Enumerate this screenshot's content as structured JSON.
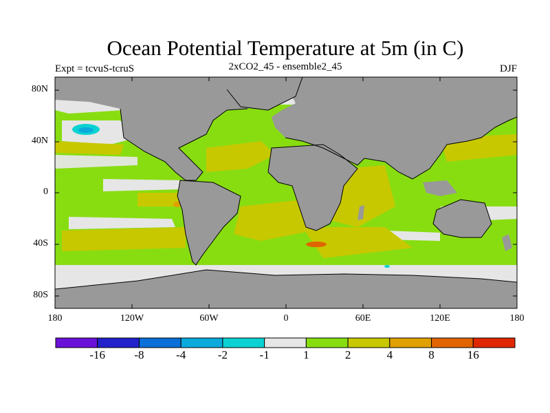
{
  "title": "Ocean Potential Temperature at 5m (in C)",
  "experiment": "Expt = tcvuS-tcruS",
  "run": "2xCO2_45 - ensemble2_45",
  "season": "DJF",
  "lat_ticks": [
    "80N",
    "40N",
    "0",
    "40S",
    "80S"
  ],
  "lon_ticks": [
    "180",
    "120W",
    "60W",
    "0",
    "60E",
    "120E",
    "180"
  ],
  "colorbar": {
    "labels": [
      "-16",
      "-8",
      "-4",
      "-2",
      "-1",
      "1",
      "2",
      "4",
      "8",
      "16"
    ],
    "colors": [
      "#6a11d9",
      "#2222cc",
      "#0a6fd6",
      "#0aaadc",
      "#0ad2d2",
      "#e6e6e6",
      "#88dd11",
      "#c8c800",
      "#e0a000",
      "#e06400",
      "#e02800"
    ]
  },
  "colors": {
    "land": "#999999",
    "no_data": "#e6e6e6",
    "ocean_1_2": "#88dd11",
    "ocean_2_4": "#c8c800",
    "ocean_4_8": "#e0a000",
    "ocean_8_16": "#e06400",
    "ocean_m2_m1": "#0ad2d2",
    "ocean_m4_m2": "#0aaadc"
  }
}
